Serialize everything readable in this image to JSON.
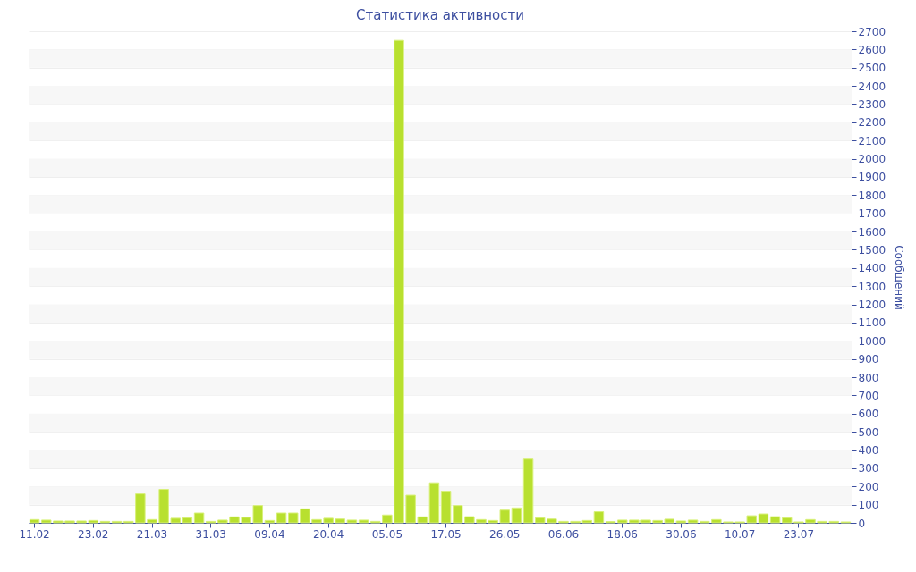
{
  "chart_data": {
    "type": "bar",
    "title": "Статистика активности",
    "ylabel": "Сообщений",
    "categories": [
      "11.02",
      null,
      null,
      null,
      null,
      "23.02",
      null,
      null,
      null,
      null,
      "21.03",
      null,
      null,
      null,
      null,
      "31.03",
      null,
      null,
      null,
      null,
      "09.04",
      null,
      null,
      null,
      null,
      "20.04",
      null,
      null,
      null,
      null,
      "05.05",
      null,
      null,
      null,
      null,
      "17.05",
      null,
      null,
      null,
      null,
      "26.05",
      null,
      null,
      null,
      null,
      "06.06",
      null,
      null,
      null,
      null,
      "18.06",
      null,
      null,
      null,
      null,
      "30.06",
      null,
      null,
      null,
      null,
      "10.07",
      null,
      null,
      null,
      null,
      "23.07",
      null,
      null,
      null,
      null
    ],
    "values": [
      18,
      15,
      10,
      10,
      10,
      13,
      8,
      8,
      8,
      159,
      18,
      184,
      25,
      28,
      54,
      8,
      15,
      33,
      30,
      95,
      13,
      54,
      54,
      77,
      18,
      25,
      21,
      15,
      15,
      8,
      43,
      2650,
      152,
      33,
      220,
      174,
      95,
      34,
      18,
      13,
      70,
      82,
      350,
      28,
      21,
      8,
      8,
      13,
      61,
      7,
      15,
      15,
      15,
      13,
      20,
      10,
      15,
      8,
      18,
      5,
      5,
      39,
      49,
      34,
      28,
      5,
      18,
      8,
      8,
      5
    ],
    "color": "#b8e02f",
    "ylim": [
      0,
      2700
    ],
    "yticks": [
      0,
      100,
      200,
      300,
      400,
      500,
      600,
      700,
      800,
      900,
      1000,
      1100,
      1200,
      1300,
      1400,
      1500,
      1600,
      1700,
      1800,
      1900,
      2000,
      2100,
      2200,
      2300,
      2400,
      2500,
      2600,
      2700
    ],
    "grid": true
  }
}
